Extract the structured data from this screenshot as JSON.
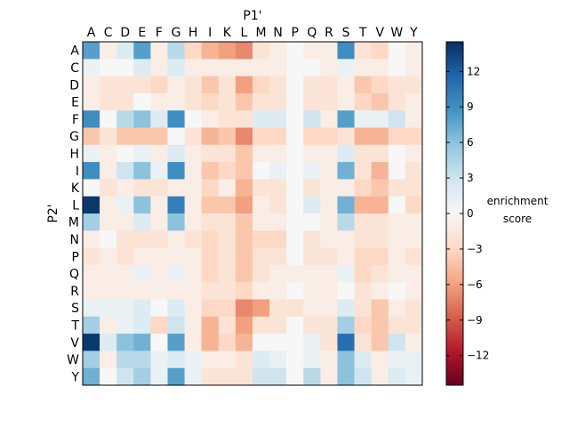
{
  "chart_data": {
    "type": "heatmap",
    "xlabel": "P1'",
    "ylabel": "P2'",
    "x_categories": [
      "A",
      "C",
      "D",
      "E",
      "F",
      "G",
      "H",
      "I",
      "K",
      "L",
      "M",
      "N",
      "P",
      "Q",
      "R",
      "S",
      "T",
      "V",
      "W",
      "Y"
    ],
    "y_categories": [
      "A",
      "C",
      "D",
      "E",
      "F",
      "G",
      "H",
      "I",
      "K",
      "L",
      "M",
      "N",
      "P",
      "Q",
      "R",
      "S",
      "T",
      "V",
      "W",
      "Y"
    ],
    "colorbar": {
      "label_lines": [
        "enrichment",
        "score"
      ],
      "vmin": -14.5,
      "vmax": 14.5,
      "ticks": [
        12,
        9,
        6,
        3,
        0,
        -3,
        -6,
        -9,
        -12
      ],
      "tick_labels": [
        "12",
        "9",
        "6",
        "3",
        "0",
        "−3",
        "−6",
        "−9",
        "−12"
      ],
      "colormap": "RdBu"
    },
    "values": [
      [
        8,
        -1,
        2,
        8,
        -1,
        4,
        -3,
        -5,
        -6,
        -7,
        -2,
        -1,
        0,
        -1,
        -1,
        9,
        -2,
        -3,
        0,
        -1
      ],
      [
        1,
        0,
        0,
        2,
        -1,
        2,
        -1,
        -1,
        -1,
        -1,
        -1,
        -1,
        0,
        0,
        -1,
        1,
        -1,
        -1,
        0,
        -1
      ],
      [
        -1,
        -2,
        -2,
        -2,
        -3,
        -1,
        -2,
        -4,
        -2,
        -6,
        -3,
        -2,
        0,
        -2,
        -2,
        -1,
        -4,
        -3,
        -2,
        -2
      ],
      [
        -1,
        -2,
        -2,
        0,
        -1,
        -1,
        -2,
        -3,
        -2,
        -4,
        -2,
        -2,
        0,
        -2,
        -2,
        -1,
        -3,
        -4,
        -2,
        -1
      ],
      [
        9,
        0,
        4,
        6,
        2,
        9,
        0,
        -1,
        -2,
        -2,
        2,
        2,
        0,
        3,
        -1,
        8,
        1,
        1,
        3,
        -1
      ],
      [
        -4,
        -2,
        -4,
        -4,
        -4,
        0,
        -2,
        -5,
        -4,
        -7,
        -3,
        -3,
        0,
        -3,
        -3,
        -2,
        -5,
        -5,
        -3,
        -3
      ],
      [
        1,
        -1,
        0,
        1,
        -1,
        2,
        -1,
        -2,
        -2,
        -4,
        -1,
        -1,
        0,
        -1,
        -1,
        2,
        -2,
        -2,
        0,
        -1
      ],
      [
        9,
        -1,
        3,
        6,
        1,
        9,
        -1,
        -4,
        -3,
        -4,
        0,
        1,
        0,
        1,
        -1,
        7,
        -2,
        -5,
        0,
        -2
      ],
      [
        0,
        -2,
        -1,
        -2,
        -2,
        -1,
        -1,
        -3,
        -1,
        -5,
        -2,
        -2,
        0,
        -2,
        -1,
        -1,
        -3,
        -4,
        -2,
        -2
      ],
      [
        14,
        -1,
        1,
        6,
        -1,
        10,
        -1,
        -4,
        -4,
        -6,
        -1,
        -2,
        0,
        2,
        -1,
        7,
        -5,
        -5,
        0,
        -3
      ],
      [
        5,
        -1,
        -1,
        2,
        -1,
        6,
        -1,
        -2,
        -2,
        -4,
        -1,
        -1,
        0,
        0,
        -1,
        4,
        -2,
        -2,
        -1,
        -1
      ],
      [
        -1,
        0,
        -2,
        -2,
        -2,
        -1,
        -2,
        -3,
        -2,
        -4,
        -3,
        -3,
        0,
        -2,
        -1,
        -1,
        -2,
        -2,
        -1,
        -1
      ],
      [
        -2,
        -1,
        -2,
        -1,
        -1,
        -1,
        -1,
        -3,
        -2,
        -4,
        -2,
        -2,
        0,
        -2,
        -2,
        -1,
        -3,
        -3,
        -1,
        -2
      ],
      [
        -1,
        -1,
        -1,
        1,
        -1,
        1,
        -1,
        -3,
        -2,
        -4,
        -2,
        -1,
        -1,
        -1,
        -1,
        1,
        -3,
        -2,
        -1,
        -1
      ],
      [
        -1,
        -1,
        -1,
        -1,
        -1,
        -1,
        -1,
        -2,
        -2,
        -3,
        -1,
        -1,
        0,
        -1,
        -1,
        0,
        -2,
        -1,
        0,
        -1
      ],
      [
        1,
        1,
        1,
        2,
        0,
        2,
        -1,
        -3,
        -3,
        -7,
        -6,
        -2,
        -2,
        -1,
        -1,
        2,
        -2,
        -4,
        -1,
        -2
      ],
      [
        5,
        -1,
        1,
        2,
        -3,
        3,
        -1,
        -5,
        -2,
        -6,
        -2,
        -2,
        0,
        -2,
        -2,
        5,
        -3,
        -4,
        -2,
        -2
      ],
      [
        14,
        2,
        6,
        7,
        0,
        8,
        -1,
        -5,
        -3,
        -5,
        0,
        0,
        0,
        1,
        -2,
        11,
        -2,
        -4,
        3,
        -1
      ],
      [
        5,
        -1,
        4,
        4,
        1,
        2,
        1,
        -1,
        -1,
        -2,
        2,
        1,
        0,
        1,
        -1,
        6,
        2,
        -1,
        1,
        1
      ],
      [
        7,
        0,
        3,
        5,
        1,
        8,
        1,
        -2,
        -2,
        -2,
        3,
        3,
        0,
        4,
        -1,
        6,
        3,
        -1,
        2,
        1
      ]
    ]
  }
}
